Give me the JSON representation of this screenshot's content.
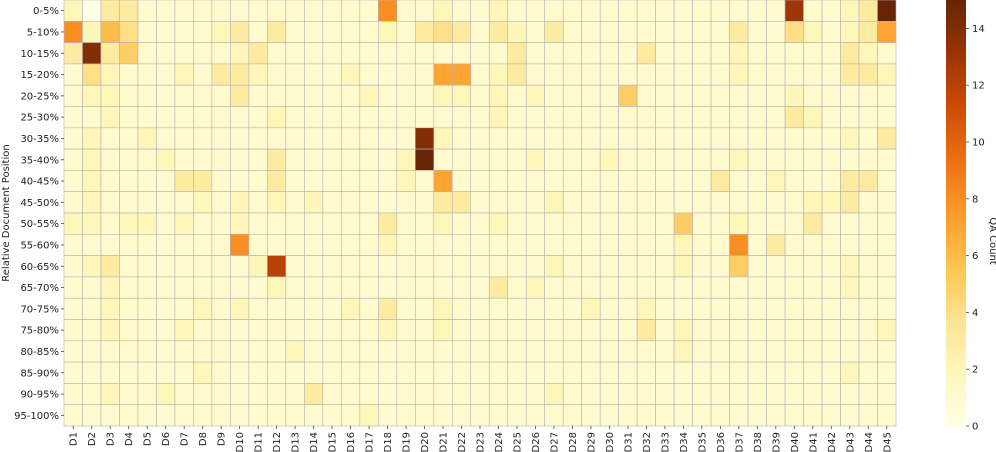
{
  "chart_data": {
    "type": "heatmap",
    "title": "",
    "xlabel": "",
    "ylabel": "Relative Document Position",
    "x_categories": [
      "D1",
      "D2",
      "D3",
      "D4",
      "D5",
      "D6",
      "D7",
      "D8",
      "D9",
      "D10",
      "D11",
      "D12",
      "D13",
      "D14",
      "D15",
      "D16",
      "D17",
      "D18",
      "D19",
      "D20",
      "D21",
      "D22",
      "D23",
      "D24",
      "D25",
      "D26",
      "D27",
      "D28",
      "D29",
      "D30",
      "D31",
      "D32",
      "D33",
      "D34",
      "D35",
      "D36",
      "D37",
      "D38",
      "D39",
      "D40",
      "D41",
      "D42",
      "D43",
      "D44",
      "D45"
    ],
    "y_categories": [
      "0-5%",
      "5-10%",
      "10-15%",
      "15-20%",
      "20-25%",
      "25-30%",
      "30-35%",
      "35-40%",
      "40-45%",
      "45-50%",
      "50-55%",
      "55-60%",
      "60-65%",
      "65-70%",
      "70-75%",
      "75-80%",
      "80-85%",
      "85-90%",
      "90-95%",
      "95-100%"
    ],
    "values": [
      [
        2,
        0,
        3,
        3,
        1,
        1,
        1,
        1,
        1,
        1,
        1,
        1,
        1,
        1,
        1,
        1,
        1,
        8,
        1,
        1,
        2,
        1,
        1,
        2,
        1,
        1,
        1,
        1,
        1,
        1,
        1,
        1,
        1,
        1,
        1,
        1,
        1,
        1,
        1,
        13,
        1,
        1,
        2,
        3,
        15
      ],
      [
        8,
        2,
        6,
        4,
        1,
        1,
        1,
        1,
        2,
        3,
        1,
        3,
        1,
        1,
        1,
        1,
        1,
        2,
        1,
        3,
        4,
        3,
        1,
        3,
        2,
        1,
        3,
        1,
        1,
        1,
        1,
        1,
        1,
        1,
        1,
        1,
        3,
        1,
        1,
        4,
        2,
        1,
        2,
        3,
        7
      ],
      [
        3,
        14,
        3,
        5,
        1,
        1,
        1,
        1,
        1,
        2,
        3,
        1,
        1,
        1,
        1,
        1,
        1,
        1,
        1,
        1,
        1,
        1,
        1,
        1,
        3,
        1,
        1,
        1,
        1,
        1,
        1,
        3,
        1,
        1,
        1,
        1,
        2,
        1,
        1,
        1,
        1,
        1,
        3,
        2,
        1
      ],
      [
        1,
        4,
        2,
        1,
        1,
        1,
        2,
        1,
        3,
        3,
        2,
        1,
        1,
        1,
        1,
        2,
        1,
        1,
        1,
        1,
        7,
        7,
        1,
        2,
        3,
        1,
        1,
        1,
        1,
        1,
        1,
        1,
        1,
        1,
        1,
        1,
        2,
        1,
        1,
        1,
        1,
        1,
        3,
        3,
        2
      ],
      [
        1,
        2,
        2,
        1,
        1,
        1,
        1,
        1,
        1,
        3,
        1,
        1,
        1,
        1,
        1,
        1,
        2,
        1,
        1,
        1,
        2,
        2,
        1,
        2,
        1,
        2,
        1,
        1,
        1,
        1,
        5,
        1,
        1,
        1,
        1,
        1,
        1,
        1,
        1,
        2,
        1,
        1,
        1,
        1,
        1
      ],
      [
        1,
        1,
        2,
        1,
        1,
        1,
        1,
        1,
        1,
        1,
        1,
        2,
        1,
        1,
        1,
        1,
        1,
        1,
        1,
        1,
        1,
        1,
        1,
        2,
        1,
        1,
        1,
        1,
        1,
        1,
        1,
        1,
        1,
        1,
        1,
        1,
        1,
        1,
        1,
        3,
        2,
        1,
        1,
        1,
        1
      ],
      [
        1,
        2,
        1,
        1,
        2,
        1,
        1,
        1,
        1,
        1,
        1,
        1,
        1,
        1,
        1,
        1,
        1,
        1,
        1,
        14,
        2,
        1,
        1,
        1,
        1,
        1,
        1,
        1,
        1,
        1,
        1,
        1,
        1,
        1,
        1,
        1,
        1,
        1,
        1,
        1,
        1,
        1,
        2,
        1,
        3
      ],
      [
        1,
        2,
        1,
        1,
        1,
        2,
        1,
        1,
        1,
        1,
        1,
        3,
        1,
        1,
        1,
        1,
        1,
        1,
        2,
        15,
        1,
        1,
        1,
        1,
        1,
        2,
        1,
        1,
        1,
        2,
        1,
        1,
        1,
        1,
        1,
        1,
        2,
        1,
        1,
        1,
        1,
        1,
        1,
        1,
        1
      ],
      [
        1,
        2,
        1,
        1,
        1,
        1,
        3,
        3,
        1,
        1,
        1,
        3,
        1,
        1,
        1,
        1,
        1,
        1,
        2,
        1,
        7,
        1,
        1,
        1,
        1,
        1,
        1,
        1,
        1,
        1,
        1,
        1,
        1,
        1,
        1,
        3,
        1,
        1,
        2,
        1,
        1,
        1,
        3,
        3,
        1
      ],
      [
        1,
        2,
        1,
        1,
        1,
        1,
        1,
        2,
        1,
        2,
        1,
        2,
        1,
        2,
        1,
        1,
        1,
        1,
        1,
        1,
        3,
        3,
        1,
        1,
        1,
        1,
        2,
        1,
        1,
        1,
        1,
        1,
        1,
        1,
        1,
        1,
        1,
        1,
        1,
        1,
        2,
        2,
        3,
        1,
        1
      ],
      [
        2,
        2,
        1,
        2,
        2,
        1,
        2,
        1,
        1,
        2,
        1,
        1,
        1,
        1,
        1,
        1,
        1,
        3,
        1,
        1,
        2,
        1,
        1,
        2,
        1,
        1,
        1,
        1,
        1,
        1,
        1,
        1,
        1,
        5,
        1,
        1,
        2,
        1,
        1,
        1,
        3,
        1,
        1,
        1,
        1
      ],
      [
        1,
        1,
        1,
        1,
        1,
        1,
        1,
        1,
        1,
        8,
        1,
        1,
        1,
        1,
        1,
        1,
        1,
        2,
        1,
        1,
        1,
        1,
        1,
        1,
        1,
        1,
        1,
        1,
        1,
        1,
        1,
        1,
        1,
        2,
        1,
        1,
        8,
        1,
        3,
        1,
        1,
        1,
        1,
        1,
        1
      ],
      [
        1,
        2,
        3,
        1,
        1,
        1,
        1,
        1,
        1,
        1,
        2,
        12,
        1,
        1,
        1,
        1,
        1,
        1,
        1,
        1,
        1,
        1,
        1,
        1,
        1,
        1,
        2,
        1,
        1,
        1,
        1,
        1,
        1,
        2,
        1,
        1,
        5,
        1,
        1,
        1,
        1,
        1,
        2,
        1,
        1
      ],
      [
        1,
        1,
        2,
        1,
        1,
        1,
        1,
        1,
        1,
        1,
        1,
        2,
        1,
        1,
        1,
        1,
        1,
        1,
        1,
        1,
        1,
        1,
        1,
        3,
        1,
        2,
        1,
        1,
        1,
        1,
        1,
        1,
        1,
        1,
        1,
        1,
        1,
        1,
        1,
        1,
        1,
        1,
        2,
        1,
        1
      ],
      [
        1,
        1,
        2,
        1,
        1,
        1,
        1,
        2,
        1,
        2,
        1,
        1,
        1,
        1,
        1,
        2,
        1,
        3,
        1,
        1,
        2,
        1,
        1,
        1,
        1,
        1,
        1,
        1,
        2,
        1,
        1,
        2,
        1,
        1,
        1,
        1,
        1,
        1,
        1,
        1,
        1,
        1,
        1,
        1,
        1
      ],
      [
        1,
        1,
        2,
        1,
        1,
        1,
        2,
        1,
        1,
        1,
        1,
        1,
        1,
        1,
        1,
        1,
        1,
        2,
        1,
        1,
        2,
        1,
        1,
        1,
        1,
        1,
        1,
        1,
        1,
        1,
        1,
        3,
        1,
        2,
        1,
        1,
        1,
        1,
        1,
        1,
        1,
        1,
        1,
        1,
        2
      ],
      [
        1,
        1,
        1,
        1,
        1,
        1,
        1,
        1,
        1,
        1,
        1,
        1,
        2,
        1,
        1,
        1,
        1,
        1,
        1,
        1,
        1,
        1,
        1,
        1,
        1,
        1,
        1,
        1,
        1,
        1,
        1,
        1,
        1,
        2,
        1,
        1,
        1,
        1,
        1,
        1,
        1,
        1,
        1,
        1,
        1
      ],
      [
        1,
        1,
        1,
        1,
        1,
        1,
        1,
        2,
        1,
        1,
        1,
        1,
        1,
        1,
        1,
        1,
        1,
        1,
        1,
        1,
        1,
        1,
        1,
        1,
        1,
        1,
        1,
        1,
        1,
        1,
        1,
        1,
        1,
        1,
        1,
        1,
        1,
        1,
        1,
        1,
        1,
        1,
        2,
        1,
        1
      ],
      [
        1,
        1,
        2,
        1,
        1,
        2,
        1,
        1,
        1,
        1,
        1,
        1,
        1,
        3,
        1,
        1,
        1,
        1,
        1,
        1,
        1,
        1,
        1,
        1,
        1,
        1,
        2,
        1,
        1,
        1,
        1,
        1,
        1,
        1,
        1,
        1,
        1,
        1,
        1,
        1,
        1,
        1,
        1,
        1,
        1
      ],
      [
        1,
        1,
        1,
        1,
        1,
        1,
        1,
        1,
        1,
        1,
        1,
        1,
        1,
        1,
        1,
        1,
        2,
        1,
        1,
        1,
        1,
        1,
        1,
        1,
        1,
        1,
        1,
        1,
        1,
        1,
        1,
        1,
        1,
        1,
        1,
        1,
        1,
        1,
        1,
        1,
        1,
        1,
        1,
        1,
        1
      ]
    ],
    "colorbar": {
      "label": "QA Count",
      "range": [
        0,
        15
      ],
      "ticks": [
        0,
        2,
        4,
        6,
        8,
        10,
        12,
        14
      ],
      "colormap": "YlOrBr",
      "colors": [
        "#ffffe5",
        "#fff7bc",
        "#fee391",
        "#fec44f",
        "#fe9929",
        "#ec7014",
        "#cc4c02",
        "#993404",
        "#662506"
      ]
    },
    "grid": true,
    "legend": "colorbar-right"
  }
}
